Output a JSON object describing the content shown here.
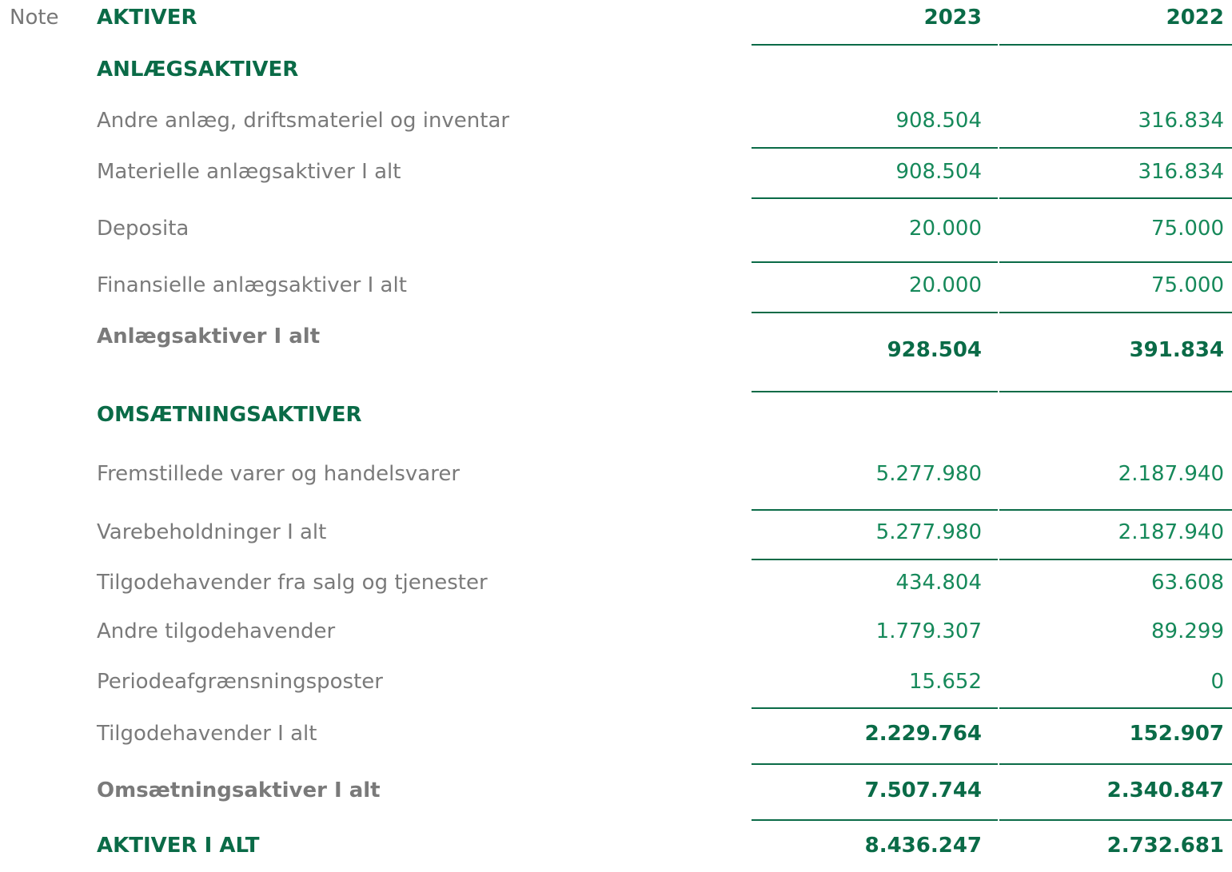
{
  "header": {
    "note": "Note",
    "title": "AKTIVER",
    "columns": [
      "2023",
      "2022"
    ]
  },
  "rows": [
    {
      "label": "ANLÆGSAKTIVER"
    },
    {
      "label": "Andre anlæg, driftsmateriel og inventar",
      "values": [
        "908.504",
        "316.834"
      ]
    },
    {
      "label": "Materielle anlægsaktiver I alt",
      "values": [
        "908.504",
        "316.834"
      ]
    },
    {
      "label": "Deposita",
      "values": [
        "20.000",
        "75.000"
      ]
    },
    {
      "label": "Finansielle anlægsaktiver I alt",
      "values": [
        "20.000",
        "75.000"
      ]
    },
    {
      "label": "Anlægsaktiver I alt",
      "values": [
        "928.504",
        "391.834"
      ]
    },
    {
      "label": "OMSÆTNINGSAKTIVER"
    },
    {
      "label": "Fremstillede varer og handelsvarer",
      "values": [
        "5.277.980",
        "2.187.940"
      ]
    },
    {
      "label": "Varebeholdninger I alt",
      "values": [
        "5.277.980",
        "2.187.940"
      ]
    },
    {
      "label": "Tilgodehavender fra salg og tjenester",
      "values": [
        "434.804",
        "63.608"
      ]
    },
    {
      "label": "Andre tilgodehavender",
      "values": [
        "1.779.307",
        "89.299"
      ]
    },
    {
      "label": "Periodeafgrænsningsposter",
      "values": [
        "15.652",
        "0"
      ]
    },
    {
      "label": "Tilgodehavender I alt",
      "values": [
        "2.229.764",
        "152.907"
      ]
    },
    {
      "label": "Omsætningsaktiver I alt",
      "values": [
        "7.507.744",
        "2.340.847"
      ]
    },
    {
      "label": "AKTIVER I ALT",
      "values": [
        "8.436.247",
        "2.732.681"
      ]
    }
  ]
}
